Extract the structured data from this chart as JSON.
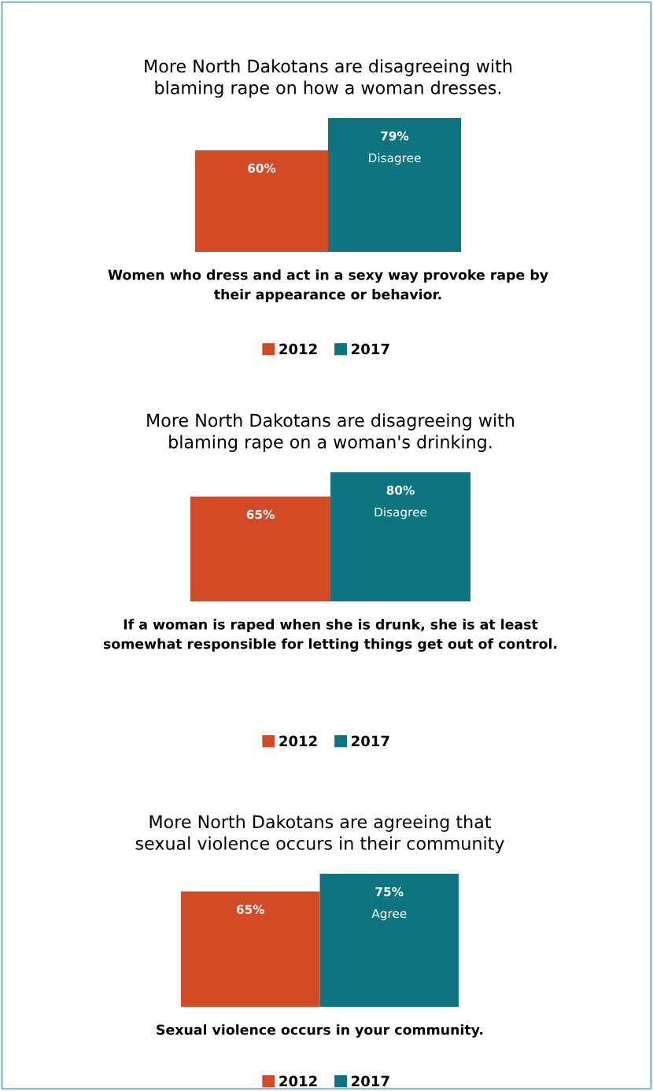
{
  "chart_data": [
    {
      "type": "bar",
      "title": "More North Dakotans are disagreeing with\nblaming rape on how a woman dresses.",
      "xlabel": "Women who dress and act in a sexy way provoke rape by\ntheir appearance or behavior.",
      "categories": [
        null
      ],
      "tick_labels": false,
      "legend": "bottom",
      "annotations": [
        "Disagree"
      ],
      "series": [
        {
          "name": "2012",
          "color": "#d24a26",
          "values": [
            60
          ],
          "value_labels": [
            "60%"
          ]
        },
        {
          "name": "2017",
          "color": "#0e7580",
          "values": [
            79
          ],
          "value_labels": [
            "79%"
          ]
        }
      ]
    },
    {
      "type": "bar",
      "title": "More North Dakotans are disagreeing with\nblaming rape on a woman's drinking.",
      "xlabel": "If a woman is raped when she is drunk, she is at least\nsomewhat responsible for letting things get out of control.",
      "categories": [
        null
      ],
      "tick_labels": false,
      "legend": "bottom",
      "annotations": [
        "Disagree"
      ],
      "series": [
        {
          "name": "2012",
          "color": "#d24a26",
          "values": [
            65
          ],
          "value_labels": [
            "65%"
          ]
        },
        {
          "name": "2017",
          "color": "#0e7580",
          "values": [
            80
          ],
          "value_labels": [
            "80%"
          ]
        }
      ]
    },
    {
      "type": "bar",
      "title": "More North Dakotans are agreeing that\nsexual violence occurs in their community",
      "xlabel": "Sexual violence occurs in your community.",
      "categories": [
        null
      ],
      "tick_labels": false,
      "legend": "bottom",
      "annotations": [
        "Agree"
      ],
      "series": [
        {
          "name": "2012",
          "color": "#d24a26",
          "values": [
            65
          ],
          "value_labels": [
            "65%"
          ]
        },
        {
          "name": "2017",
          "color": "#0e7580",
          "values": [
            75
          ],
          "value_labels": [
            "75%"
          ]
        }
      ]
    }
  ]
}
